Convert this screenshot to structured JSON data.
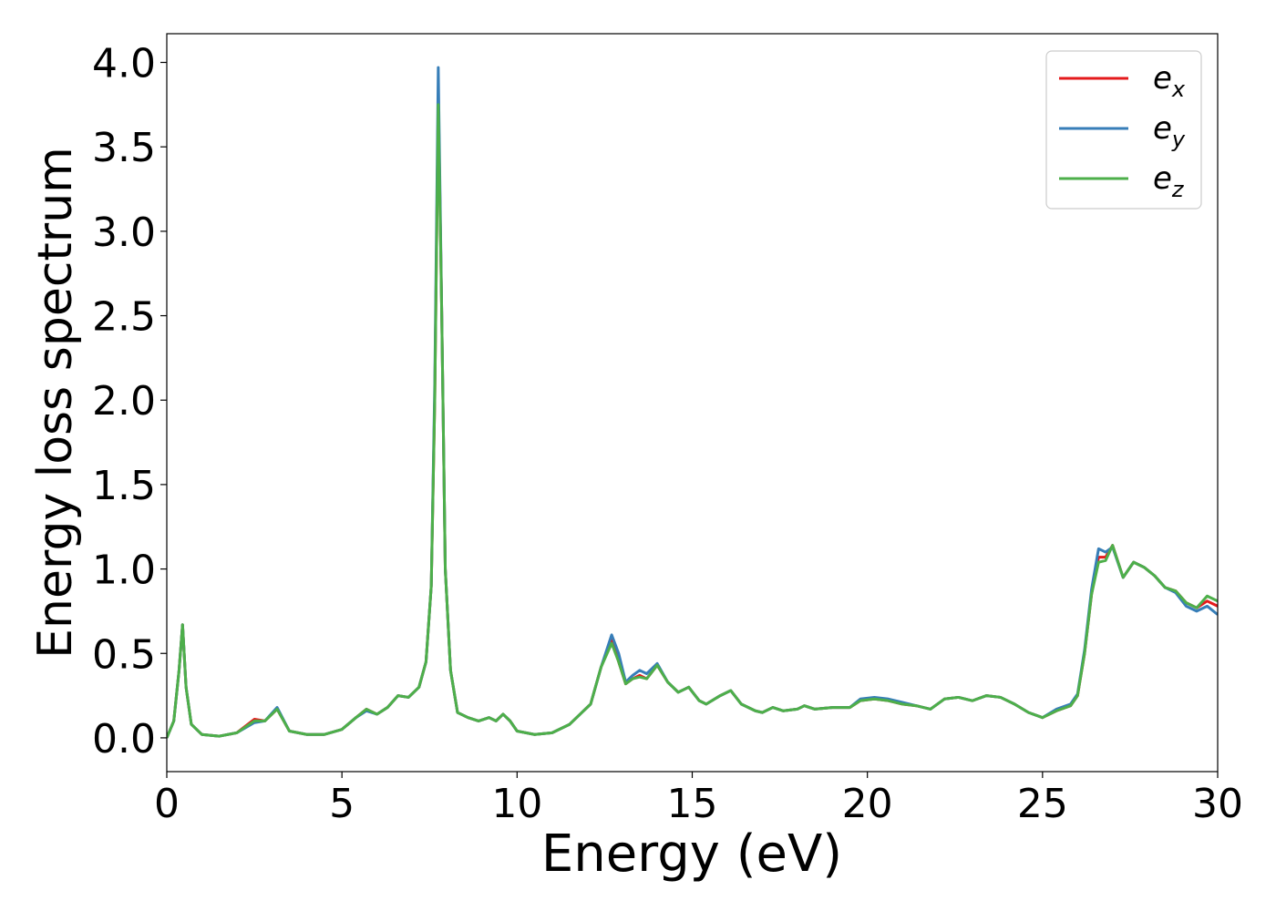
{
  "chart_data": {
    "type": "line",
    "xlabel": "Energy (eV)",
    "ylabel": "Energy loss spectrum",
    "xlim": [
      0,
      30
    ],
    "ylim": [
      -0.2,
      4.17
    ],
    "xticks": [
      0,
      5,
      10,
      15,
      20,
      25,
      30
    ],
    "yticks": [
      {
        "value": 0,
        "label": "0.0"
      },
      0.5,
      {
        "value": 1,
        "label": "1.0"
      },
      1.5,
      {
        "value": 2,
        "label": "2.0"
      },
      2.5,
      {
        "value": 3,
        "label": "3.0"
      },
      3.5,
      {
        "value": 4,
        "label": "4.0"
      }
    ],
    "legend": "upper right",
    "x": [
      0,
      0.2,
      0.35,
      0.45,
      0.55,
      0.7,
      1.0,
      1.5,
      2.0,
      2.5,
      2.8,
      3.15,
      3.5,
      4.0,
      4.5,
      5.0,
      5.4,
      5.7,
      6.0,
      6.3,
      6.6,
      6.9,
      7.2,
      7.4,
      7.55,
      7.65,
      7.75,
      7.85,
      7.95,
      8.1,
      8.3,
      8.6,
      8.9,
      9.2,
      9.4,
      9.6,
      9.8,
      10.0,
      10.5,
      11.0,
      11.5,
      11.8,
      12.1,
      12.4,
      12.7,
      12.9,
      13.1,
      13.3,
      13.5,
      13.7,
      14.0,
      14.3,
      14.6,
      14.9,
      15.2,
      15.4,
      15.8,
      16.1,
      16.4,
      16.8,
      17.0,
      17.3,
      17.6,
      18.0,
      18.2,
      18.5,
      19.0,
      19.5,
      19.8,
      20.2,
      20.6,
      21.0,
      21.4,
      21.8,
      22.2,
      22.6,
      23.0,
      23.4,
      23.8,
      24.2,
      24.6,
      25.0,
      25.4,
      25.8,
      26.0,
      26.2,
      26.4,
      26.6,
      26.8,
      27.0,
      27.3,
      27.6,
      27.9,
      28.2,
      28.5,
      28.8,
      29.1,
      29.4,
      29.7,
      30.0
    ],
    "series": [
      {
        "name": "ex",
        "color": "#e41a1c",
        "values": [
          0,
          0.1,
          0.4,
          0.67,
          0.3,
          0.08,
          0.02,
          0.01,
          0.03,
          0.11,
          0.1,
          0.17,
          0.04,
          0.02,
          0.02,
          0.05,
          0.12,
          0.17,
          0.14,
          0.18,
          0.25,
          0.24,
          0.3,
          0.45,
          0.9,
          2.0,
          3.8,
          2.5,
          1.0,
          0.4,
          0.15,
          0.12,
          0.1,
          0.12,
          0.1,
          0.14,
          0.1,
          0.04,
          0.02,
          0.03,
          0.08,
          0.14,
          0.2,
          0.42,
          0.58,
          0.45,
          0.32,
          0.35,
          0.37,
          0.35,
          0.43,
          0.33,
          0.27,
          0.3,
          0.22,
          0.2,
          0.25,
          0.28,
          0.2,
          0.16,
          0.15,
          0.18,
          0.16,
          0.17,
          0.19,
          0.17,
          0.18,
          0.18,
          0.22,
          0.23,
          0.22,
          0.2,
          0.19,
          0.17,
          0.23,
          0.24,
          0.22,
          0.25,
          0.24,
          0.2,
          0.15,
          0.12,
          0.16,
          0.19,
          0.25,
          0.5,
          0.85,
          1.07,
          1.07,
          1.14,
          0.95,
          1.04,
          1.01,
          0.96,
          0.89,
          0.87,
          0.8,
          0.77,
          0.81,
          0.78
        ]
      },
      {
        "name": "ey",
        "color": "#377eb8",
        "values": [
          0,
          0.1,
          0.4,
          0.67,
          0.3,
          0.08,
          0.02,
          0.01,
          0.03,
          0.09,
          0.1,
          0.18,
          0.04,
          0.02,
          0.02,
          0.05,
          0.12,
          0.16,
          0.14,
          0.18,
          0.25,
          0.24,
          0.3,
          0.45,
          0.9,
          2.1,
          3.97,
          2.5,
          1.0,
          0.4,
          0.15,
          0.12,
          0.1,
          0.12,
          0.1,
          0.14,
          0.1,
          0.04,
          0.02,
          0.03,
          0.08,
          0.14,
          0.2,
          0.42,
          0.61,
          0.5,
          0.33,
          0.37,
          0.4,
          0.38,
          0.44,
          0.33,
          0.27,
          0.3,
          0.22,
          0.2,
          0.25,
          0.28,
          0.2,
          0.16,
          0.15,
          0.18,
          0.16,
          0.17,
          0.19,
          0.17,
          0.18,
          0.18,
          0.23,
          0.24,
          0.23,
          0.21,
          0.19,
          0.17,
          0.23,
          0.24,
          0.22,
          0.25,
          0.24,
          0.2,
          0.15,
          0.12,
          0.17,
          0.2,
          0.26,
          0.52,
          0.88,
          1.12,
          1.1,
          1.13,
          0.95,
          1.04,
          1.01,
          0.96,
          0.89,
          0.86,
          0.78,
          0.75,
          0.78,
          0.73
        ]
      },
      {
        "name": "ez",
        "color": "#4daf4a",
        "values": [
          0,
          0.1,
          0.4,
          0.67,
          0.3,
          0.08,
          0.02,
          0.01,
          0.03,
          0.1,
          0.1,
          0.17,
          0.04,
          0.02,
          0.02,
          0.05,
          0.12,
          0.17,
          0.14,
          0.18,
          0.25,
          0.24,
          0.3,
          0.45,
          0.9,
          2.0,
          3.75,
          2.5,
          1.0,
          0.4,
          0.15,
          0.12,
          0.1,
          0.12,
          0.1,
          0.14,
          0.1,
          0.04,
          0.02,
          0.03,
          0.08,
          0.14,
          0.2,
          0.42,
          0.56,
          0.45,
          0.32,
          0.35,
          0.36,
          0.35,
          0.43,
          0.33,
          0.27,
          0.3,
          0.22,
          0.2,
          0.25,
          0.28,
          0.2,
          0.16,
          0.15,
          0.18,
          0.16,
          0.17,
          0.19,
          0.17,
          0.18,
          0.18,
          0.22,
          0.23,
          0.22,
          0.2,
          0.19,
          0.17,
          0.23,
          0.24,
          0.22,
          0.25,
          0.24,
          0.2,
          0.15,
          0.12,
          0.16,
          0.19,
          0.25,
          0.5,
          0.85,
          1.04,
          1.05,
          1.14,
          0.95,
          1.04,
          1.01,
          0.96,
          0.89,
          0.87,
          0.8,
          0.77,
          0.84,
          0.81
        ]
      }
    ]
  }
}
